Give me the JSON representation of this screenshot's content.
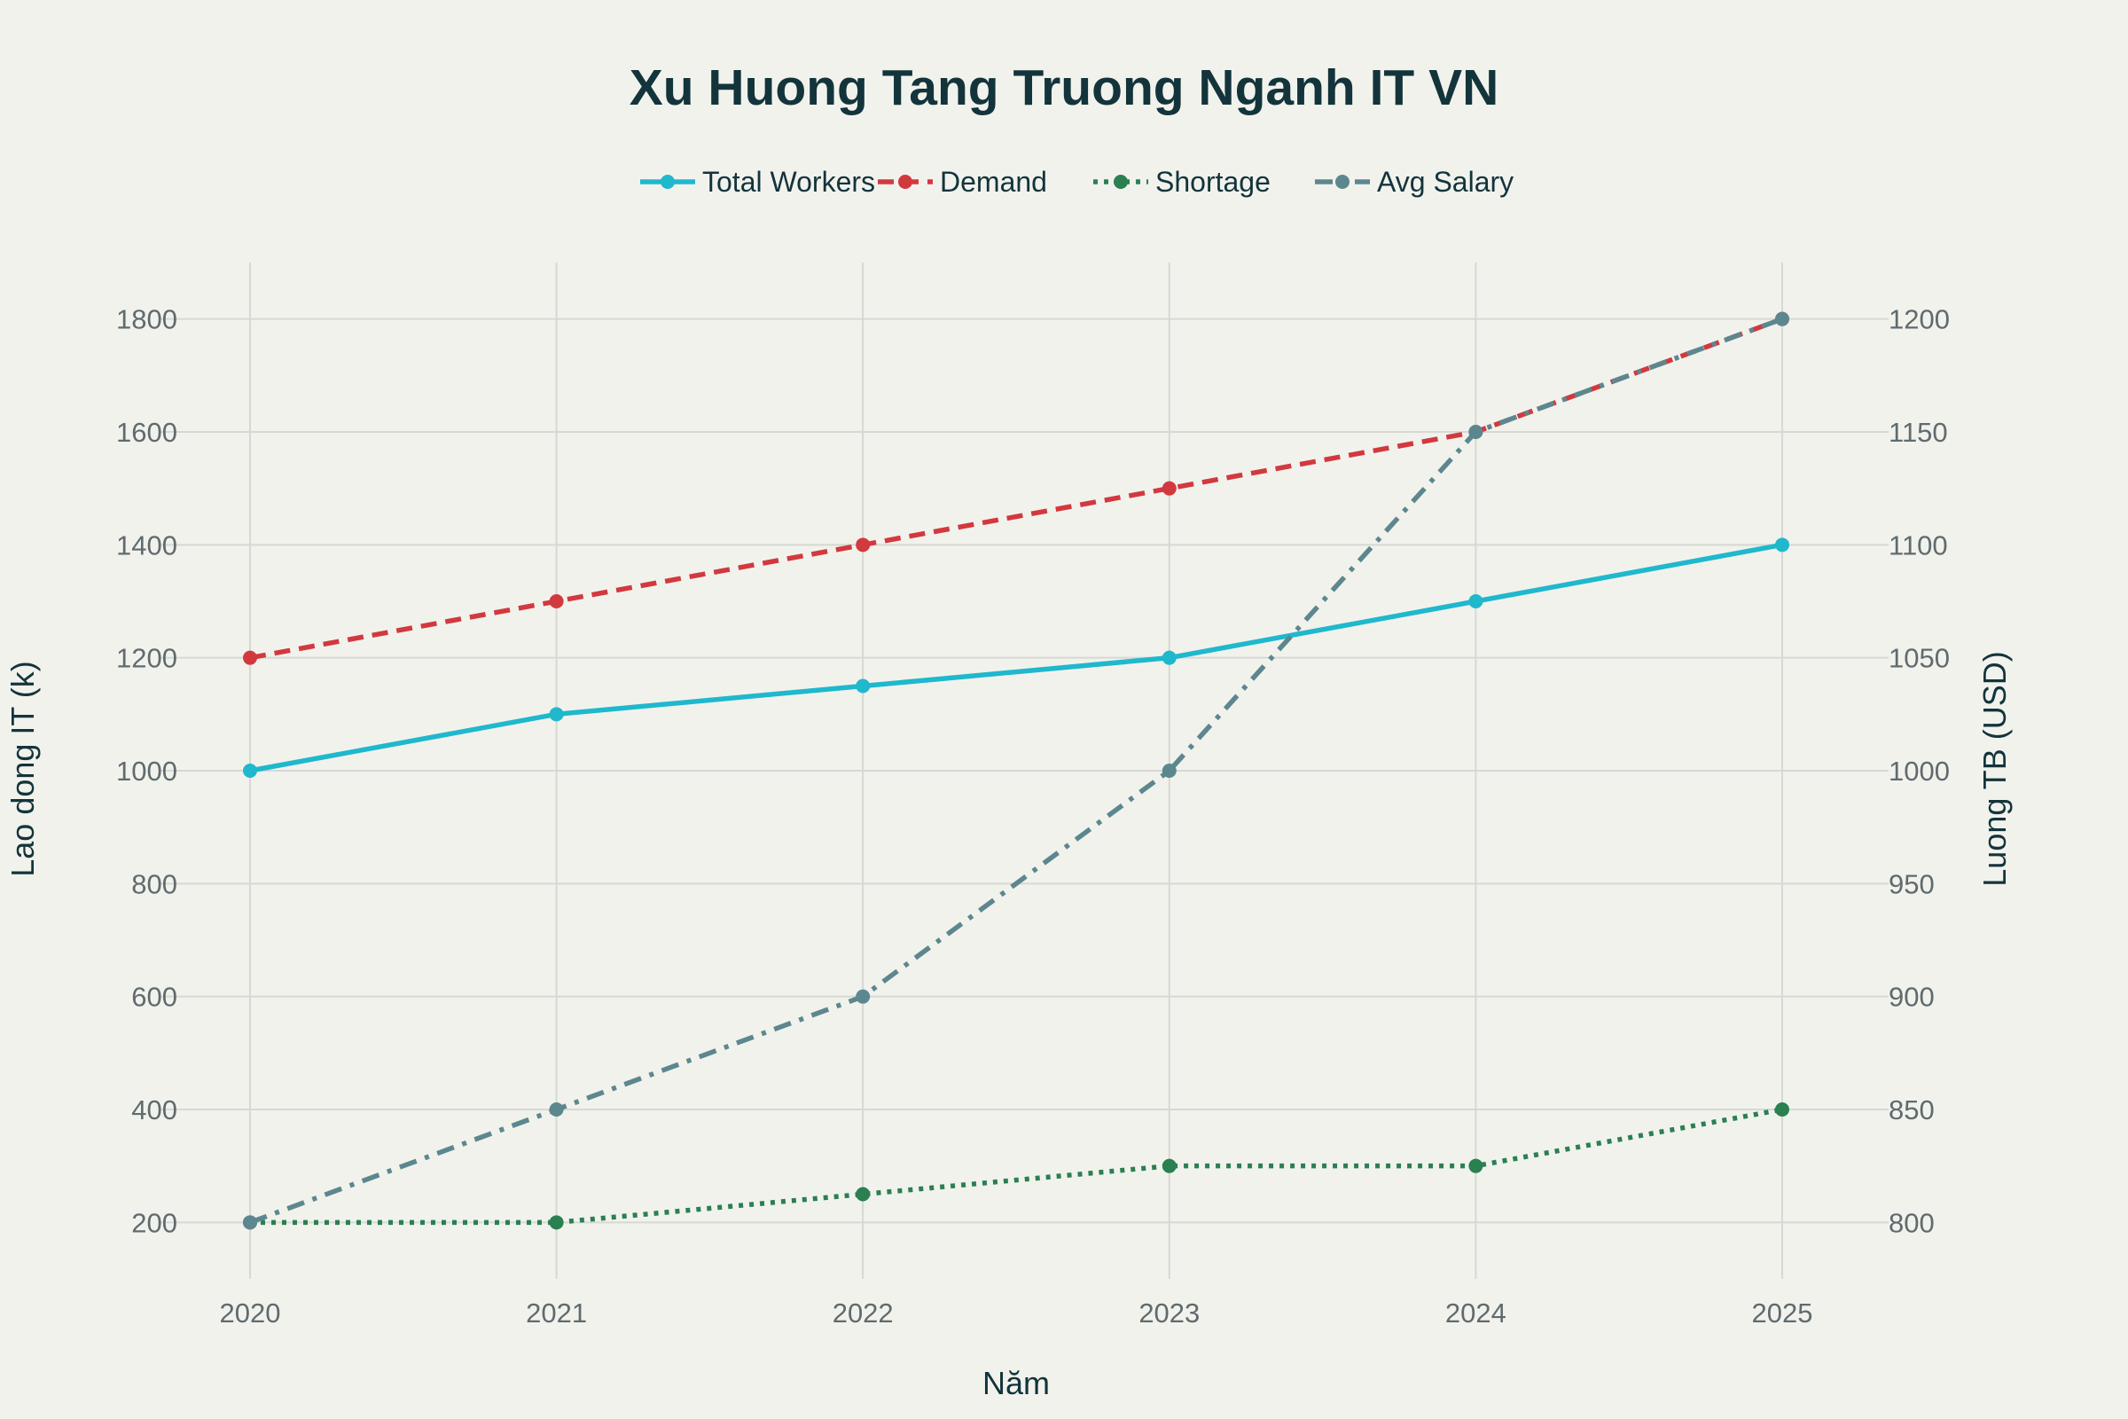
{
  "chart_data": {
    "type": "line",
    "title": "Xu Huong Tang Truong Nganh IT VN",
    "xlabel": "Năm",
    "ylabel": "Lao dong IT (k)",
    "y2label": "Luong TB (USD)",
    "x": [
      "2020",
      "2021",
      "2022",
      "2023",
      "2024",
      "2025"
    ],
    "ylim": [
      100,
      1900
    ],
    "y2lim": [
      775,
      1225
    ],
    "yticks": [
      200,
      400,
      600,
      800,
      1000,
      1200,
      1400,
      1600,
      1800
    ],
    "y2ticks": [
      800,
      850,
      900,
      950,
      1000,
      1050,
      1100,
      1150,
      1200
    ],
    "grid": true,
    "legend_position": "top-center",
    "series": [
      {
        "name": "Total Workers",
        "axis": "left",
        "color": "#1fb8cd",
        "dash": "solid",
        "values": [
          1000,
          1100,
          1150,
          1200,
          1300,
          1400
        ]
      },
      {
        "name": "Demand",
        "axis": "left",
        "color": "#d2393e",
        "dash": "dash",
        "values": [
          1200,
          1300,
          1400,
          1500,
          1600,
          1800
        ]
      },
      {
        "name": "Shortage",
        "axis": "left",
        "color": "#2a8050",
        "dash": "dot",
        "values": [
          200,
          200,
          250,
          300,
          300,
          400
        ]
      },
      {
        "name": "Avg Salary",
        "axis": "right",
        "color": "#5d878f",
        "dash": "dashdot",
        "values": [
          800,
          850,
          900,
          1000,
          1150,
          1200
        ]
      }
    ]
  }
}
